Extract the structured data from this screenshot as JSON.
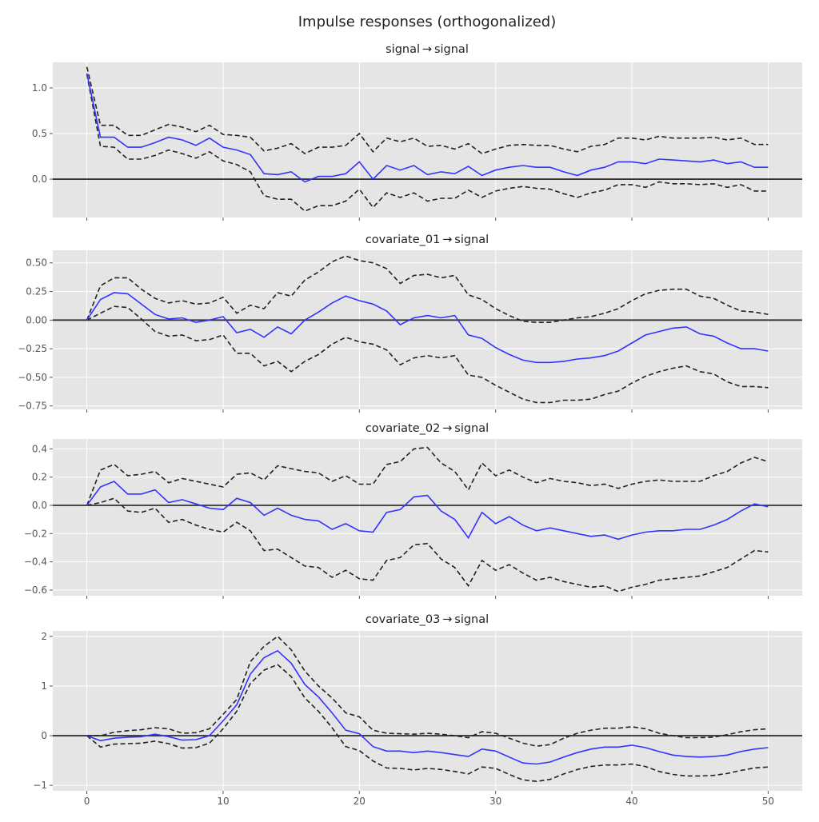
{
  "figure": {
    "title": "Impulse responses (orthogonalized)"
  },
  "colors": {
    "background": "#e5e5e5",
    "grid": "#ffffff",
    "irf": "#3333ff",
    "band": "#222222",
    "zero_line": "#333333"
  },
  "chart_data": [
    {
      "type": "line",
      "title": "signal → signal",
      "xlim": [
        -2.5,
        52.5
      ],
      "ylim": [
        -0.42,
        1.28
      ],
      "xticks": [
        0,
        10,
        20,
        30,
        40,
        50
      ],
      "xtick_labels": [],
      "yticks": [
        1.0,
        0.5,
        0.0
      ],
      "ytick_labels": [
        "1.0",
        "0.5",
        "0.0"
      ],
      "grid": true,
      "irf": [
        1.16,
        0.46,
        0.46,
        0.35,
        0.35,
        0.4,
        0.46,
        0.43,
        0.37,
        0.45,
        0.35,
        0.32,
        0.27,
        0.06,
        0.05,
        0.08,
        -0.03,
        0.03,
        0.03,
        0.06,
        0.19,
        0.0,
        0.15,
        0.1,
        0.15,
        0.05,
        0.08,
        0.06,
        0.14,
        0.04,
        0.1,
        0.13,
        0.15,
        0.13,
        0.13,
        0.08,
        0.04,
        0.1,
        0.13,
        0.19,
        0.19,
        0.17,
        0.22,
        0.21,
        0.2,
        0.19,
        0.21,
        0.17,
        0.19,
        0.13,
        0.13
      ],
      "upper": [
        1.23,
        0.59,
        0.59,
        0.48,
        0.48,
        0.54,
        0.6,
        0.57,
        0.52,
        0.59,
        0.49,
        0.48,
        0.46,
        0.31,
        0.34,
        0.39,
        0.28,
        0.35,
        0.35,
        0.37,
        0.5,
        0.3,
        0.45,
        0.41,
        0.45,
        0.36,
        0.37,
        0.33,
        0.39,
        0.28,
        0.33,
        0.37,
        0.38,
        0.37,
        0.37,
        0.33,
        0.3,
        0.36,
        0.38,
        0.45,
        0.45,
        0.43,
        0.47,
        0.45,
        0.45,
        0.45,
        0.46,
        0.43,
        0.45,
        0.38,
        0.38
      ],
      "lower": [
        1.15,
        0.36,
        0.35,
        0.22,
        0.22,
        0.26,
        0.32,
        0.28,
        0.23,
        0.3,
        0.2,
        0.16,
        0.08,
        -0.18,
        -0.22,
        -0.22,
        -0.35,
        -0.29,
        -0.29,
        -0.24,
        -0.11,
        -0.31,
        -0.15,
        -0.2,
        -0.15,
        -0.24,
        -0.21,
        -0.21,
        -0.12,
        -0.2,
        -0.13,
        -0.1,
        -0.08,
        -0.1,
        -0.11,
        -0.16,
        -0.2,
        -0.15,
        -0.12,
        -0.06,
        -0.06,
        -0.09,
        -0.03,
        -0.05,
        -0.05,
        -0.06,
        -0.05,
        -0.09,
        -0.06,
        -0.13,
        -0.13
      ]
    },
    {
      "type": "line",
      "title": "covariate_01 → signal",
      "xlim": [
        -2.5,
        52.5
      ],
      "ylim": [
        -0.78,
        0.61
      ],
      "xticks": [
        0,
        10,
        20,
        30,
        40,
        50
      ],
      "xtick_labels": [],
      "yticks": [
        0.5,
        0.25,
        0.0,
        -0.25,
        -0.5,
        -0.75
      ],
      "ytick_labels": [
        "0.50",
        "0.25",
        "0.00",
        "−0.25",
        "−0.50",
        "−0.75"
      ],
      "grid": true,
      "irf": [
        0.0,
        0.18,
        0.24,
        0.23,
        0.14,
        0.05,
        0.01,
        0.02,
        -0.02,
        0.0,
        0.03,
        -0.11,
        -0.08,
        -0.15,
        -0.06,
        -0.12,
        0.0,
        0.07,
        0.15,
        0.21,
        0.17,
        0.14,
        0.08,
        -0.04,
        0.02,
        0.04,
        0.02,
        0.04,
        -0.13,
        -0.16,
        -0.24,
        -0.3,
        -0.35,
        -0.37,
        -0.37,
        -0.36,
        -0.34,
        -0.33,
        -0.31,
        -0.27,
        -0.2,
        -0.13,
        -0.1,
        -0.07,
        -0.06,
        -0.12,
        -0.14,
        -0.2,
        -0.25,
        -0.25,
        -0.27
      ],
      "upper": [
        0.0,
        0.3,
        0.37,
        0.37,
        0.27,
        0.19,
        0.15,
        0.17,
        0.14,
        0.15,
        0.2,
        0.06,
        0.13,
        0.1,
        0.24,
        0.21,
        0.35,
        0.42,
        0.51,
        0.56,
        0.52,
        0.5,
        0.45,
        0.32,
        0.39,
        0.4,
        0.37,
        0.39,
        0.22,
        0.18,
        0.1,
        0.04,
        -0.01,
        -0.02,
        -0.02,
        0.0,
        0.02,
        0.03,
        0.06,
        0.1,
        0.17,
        0.23,
        0.26,
        0.27,
        0.27,
        0.21,
        0.19,
        0.13,
        0.08,
        0.07,
        0.05
      ],
      "lower": [
        0.0,
        0.06,
        0.12,
        0.11,
        0.01,
        -0.1,
        -0.14,
        -0.13,
        -0.18,
        -0.17,
        -0.13,
        -0.29,
        -0.29,
        -0.4,
        -0.36,
        -0.45,
        -0.36,
        -0.3,
        -0.21,
        -0.15,
        -0.19,
        -0.21,
        -0.26,
        -0.39,
        -0.33,
        -0.31,
        -0.33,
        -0.31,
        -0.48,
        -0.5,
        -0.57,
        -0.63,
        -0.69,
        -0.72,
        -0.72,
        -0.7,
        -0.7,
        -0.69,
        -0.65,
        -0.62,
        -0.55,
        -0.49,
        -0.45,
        -0.42,
        -0.4,
        -0.45,
        -0.47,
        -0.54,
        -0.58,
        -0.58,
        -0.59
      ]
    },
    {
      "type": "line",
      "title": "covariate_02 → signal",
      "xlim": [
        -2.5,
        52.5
      ],
      "ylim": [
        -0.64,
        0.47
      ],
      "xticks": [
        0,
        10,
        20,
        30,
        40,
        50
      ],
      "xtick_labels": [],
      "yticks": [
        0.4,
        0.2,
        0.0,
        -0.2,
        -0.4,
        -0.6
      ],
      "ytick_labels": [
        "0.4",
        "0.2",
        "0.0",
        "−0.2",
        "−0.4",
        "−0.6"
      ],
      "grid": true,
      "irf": [
        0.0,
        0.13,
        0.17,
        0.08,
        0.08,
        0.11,
        0.02,
        0.04,
        0.01,
        -0.02,
        -0.03,
        0.05,
        0.02,
        -0.07,
        -0.02,
        -0.07,
        -0.1,
        -0.11,
        -0.17,
        -0.13,
        -0.18,
        -0.19,
        -0.05,
        -0.03,
        0.06,
        0.07,
        -0.04,
        -0.1,
        -0.23,
        -0.05,
        -0.13,
        -0.08,
        -0.14,
        -0.18,
        -0.16,
        -0.18,
        -0.2,
        -0.22,
        -0.21,
        -0.24,
        -0.21,
        -0.19,
        -0.18,
        -0.18,
        -0.17,
        -0.17,
        -0.14,
        -0.1,
        -0.04,
        0.01,
        -0.01
      ],
      "upper": [
        0.0,
        0.25,
        0.29,
        0.21,
        0.22,
        0.24,
        0.16,
        0.19,
        0.17,
        0.15,
        0.13,
        0.22,
        0.23,
        0.18,
        0.28,
        0.26,
        0.24,
        0.23,
        0.17,
        0.21,
        0.15,
        0.15,
        0.29,
        0.31,
        0.4,
        0.41,
        0.3,
        0.24,
        0.11,
        0.3,
        0.21,
        0.25,
        0.2,
        0.16,
        0.19,
        0.17,
        0.16,
        0.14,
        0.15,
        0.12,
        0.15,
        0.17,
        0.18,
        0.17,
        0.17,
        0.17,
        0.21,
        0.24,
        0.3,
        0.34,
        0.31
      ],
      "lower": [
        0.0,
        0.02,
        0.05,
        -0.04,
        -0.05,
        -0.02,
        -0.12,
        -0.1,
        -0.14,
        -0.17,
        -0.19,
        -0.12,
        -0.18,
        -0.32,
        -0.31,
        -0.37,
        -0.43,
        -0.44,
        -0.51,
        -0.46,
        -0.52,
        -0.53,
        -0.39,
        -0.37,
        -0.28,
        -0.27,
        -0.38,
        -0.44,
        -0.57,
        -0.39,
        -0.46,
        -0.42,
        -0.48,
        -0.53,
        -0.51,
        -0.54,
        -0.56,
        -0.58,
        -0.57,
        -0.61,
        -0.58,
        -0.56,
        -0.53,
        -0.52,
        -0.51,
        -0.5,
        -0.47,
        -0.44,
        -0.38,
        -0.32,
        -0.33
      ]
    },
    {
      "type": "line",
      "title": "covariate_03 → signal",
      "xlim": [
        -2.5,
        52.5
      ],
      "ylim": [
        -1.11,
        2.11
      ],
      "xticks": [
        0,
        10,
        20,
        30,
        40,
        50
      ],
      "xtick_labels": [
        "0",
        "10",
        "20",
        "30",
        "40",
        "50"
      ],
      "yticks": [
        2,
        1,
        0,
        -1
      ],
      "ytick_labels": [
        "2",
        "1",
        "0",
        "−1"
      ],
      "grid": true,
      "irf": [
        0.0,
        -0.1,
        -0.05,
        -0.03,
        -0.02,
        0.03,
        -0.02,
        -0.09,
        -0.08,
        0.0,
        0.3,
        0.62,
        1.24,
        1.57,
        1.71,
        1.46,
        1.03,
        0.78,
        0.46,
        0.11,
        0.04,
        -0.22,
        -0.31,
        -0.31,
        -0.34,
        -0.31,
        -0.34,
        -0.38,
        -0.42,
        -0.27,
        -0.31,
        -0.43,
        -0.55,
        -0.57,
        -0.53,
        -0.43,
        -0.34,
        -0.27,
        -0.23,
        -0.23,
        -0.19,
        -0.24,
        -0.32,
        -0.39,
        -0.42,
        -0.43,
        -0.42,
        -0.39,
        -0.32,
        -0.27,
        -0.24
      ],
      "upper": [
        0.0,
        0.0,
        0.07,
        0.1,
        0.12,
        0.16,
        0.14,
        0.05,
        0.06,
        0.14,
        0.43,
        0.73,
        1.49,
        1.8,
        2.0,
        1.73,
        1.3,
        1.0,
        0.76,
        0.46,
        0.38,
        0.11,
        0.05,
        0.04,
        0.03,
        0.05,
        0.03,
        0.0,
        -0.04,
        0.08,
        0.05,
        -0.05,
        -0.15,
        -0.21,
        -0.18,
        -0.05,
        0.05,
        0.11,
        0.15,
        0.15,
        0.18,
        0.14,
        0.05,
        0.0,
        -0.04,
        -0.04,
        -0.03,
        0.02,
        0.08,
        0.12,
        0.14
      ],
      "lower": [
        0.0,
        -0.23,
        -0.17,
        -0.16,
        -0.15,
        -0.11,
        -0.16,
        -0.25,
        -0.24,
        -0.15,
        0.14,
        0.49,
        1.05,
        1.32,
        1.43,
        1.19,
        0.76,
        0.49,
        0.16,
        -0.22,
        -0.3,
        -0.51,
        -0.65,
        -0.66,
        -0.69,
        -0.66,
        -0.68,
        -0.72,
        -0.77,
        -0.63,
        -0.66,
        -0.78,
        -0.89,
        -0.92,
        -0.88,
        -0.77,
        -0.68,
        -0.62,
        -0.59,
        -0.59,
        -0.57,
        -0.62,
        -0.72,
        -0.78,
        -0.81,
        -0.81,
        -0.8,
        -0.76,
        -0.7,
        -0.65,
        -0.63
      ]
    }
  ]
}
